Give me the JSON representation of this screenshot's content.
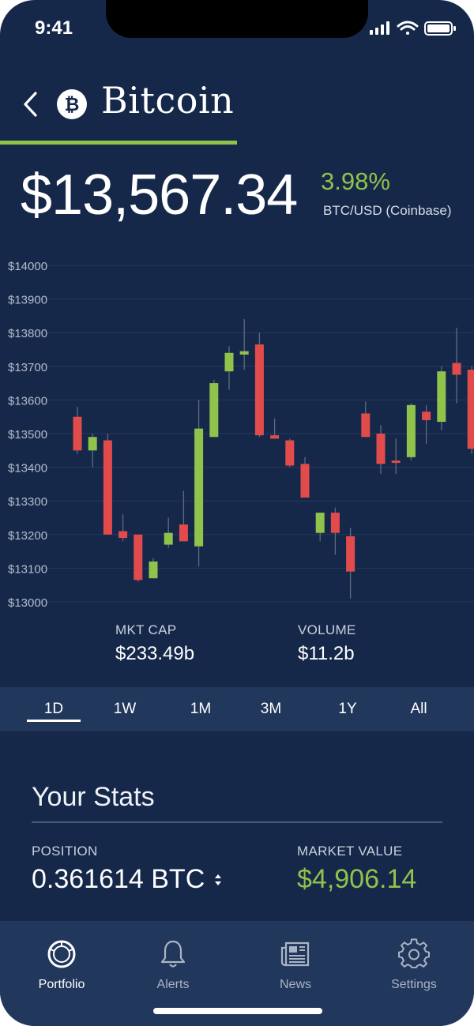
{
  "status_bar": {
    "time": "9:41"
  },
  "header": {
    "title": "Bitcoin",
    "coin_symbol": "₿"
  },
  "price": {
    "value": "$13,567.34",
    "change": "3.98%",
    "pair": "BTC/USD (Coinbase)"
  },
  "colors": {
    "background": "#16284a",
    "accent_green": "#8fc34c",
    "bear_red": "#e24b4b",
    "bull_green": "#8fc34c"
  },
  "chart_data": {
    "type": "candlestick",
    "y_ticks": [
      "$14000",
      "$13900",
      "$13800",
      "$13700",
      "$13600",
      "$13500",
      "$13400",
      "$13300",
      "$13200",
      "$13100",
      "$13000"
    ],
    "ylim": [
      13000,
      14000
    ],
    "grid": true,
    "candles": [
      {
        "open": 13550,
        "close": 13450,
        "high": 13580,
        "low": 13440
      },
      {
        "open": 13450,
        "close": 13490,
        "high": 13500,
        "low": 13400
      },
      {
        "open": 13480,
        "close": 13200,
        "high": 13500,
        "low": 13200
      },
      {
        "open": 13210,
        "close": 13190,
        "high": 13260,
        "low": 13180
      },
      {
        "open": 13200,
        "close": 13065,
        "high": 13200,
        "low": 13060
      },
      {
        "open": 13070,
        "close": 13120,
        "high": 13130,
        "low": 13070
      },
      {
        "open": 13170,
        "close": 13205,
        "high": 13250,
        "low": 13160
      },
      {
        "open": 13230,
        "close": 13180,
        "high": 13330,
        "low": 13180
      },
      {
        "open": 13165,
        "close": 13515,
        "high": 13600,
        "low": 13105
      },
      {
        "open": 13490,
        "close": 13650,
        "high": 13660,
        "low": 13490
      },
      {
        "open": 13685,
        "close": 13740,
        "high": 13760,
        "low": 13630
      },
      {
        "open": 13735,
        "close": 13745,
        "high": 13840,
        "low": 13690
      },
      {
        "open": 13765,
        "close": 13495,
        "high": 13800,
        "low": 13490
      },
      {
        "open": 13495,
        "close": 13485,
        "high": 13545,
        "low": 13485
      },
      {
        "open": 13480,
        "close": 13405,
        "high": 13485,
        "low": 13400
      },
      {
        "open": 13410,
        "close": 13310,
        "high": 13430,
        "low": 13310
      },
      {
        "open": 13205,
        "close": 13265,
        "high": 13265,
        "low": 13180
      },
      {
        "open": 13265,
        "close": 13205,
        "high": 13280,
        "low": 13140
      },
      {
        "open": 13195,
        "close": 13090,
        "high": 13220,
        "low": 13010
      },
      {
        "open": 13560,
        "close": 13490,
        "high": 13595,
        "low": 13490
      },
      {
        "open": 13500,
        "close": 13410,
        "high": 13525,
        "low": 13380
      },
      {
        "open": 13420,
        "close": 13415,
        "high": 13485,
        "low": 13380
      },
      {
        "open": 13430,
        "close": 13585,
        "high": 13590,
        "low": 13420
      },
      {
        "open": 13565,
        "close": 13540,
        "high": 13585,
        "low": 13470
      },
      {
        "open": 13535,
        "close": 13685,
        "high": 13700,
        "low": 13510
      },
      {
        "open": 13710,
        "close": 13675,
        "high": 13815,
        "low": 13590
      },
      {
        "open": 13690,
        "close": 13455,
        "high": 13700,
        "low": 13440
      }
    ]
  },
  "market_stats": {
    "mkt_cap_label": "MKT CAP",
    "mkt_cap_value": "$233.49b",
    "volume_label": "VOLUME",
    "volume_value": "$11.2b"
  },
  "ranges": [
    "1D",
    "1W",
    "1M",
    "3M",
    "1Y",
    "All"
  ],
  "active_range": "1D",
  "your_stats": {
    "title": "Your Stats",
    "position_label": "POSITION",
    "position_value": "0.361614 BTC",
    "market_value_label": "MARKET VALUE",
    "market_value_value": "$4,906.14"
  },
  "tabs": [
    {
      "label": "Portfolio",
      "icon": "portfolio-icon"
    },
    {
      "label": "Alerts",
      "icon": "bell-icon"
    },
    {
      "label": "News",
      "icon": "newspaper-icon"
    },
    {
      "label": "Settings",
      "icon": "gear-icon"
    }
  ]
}
